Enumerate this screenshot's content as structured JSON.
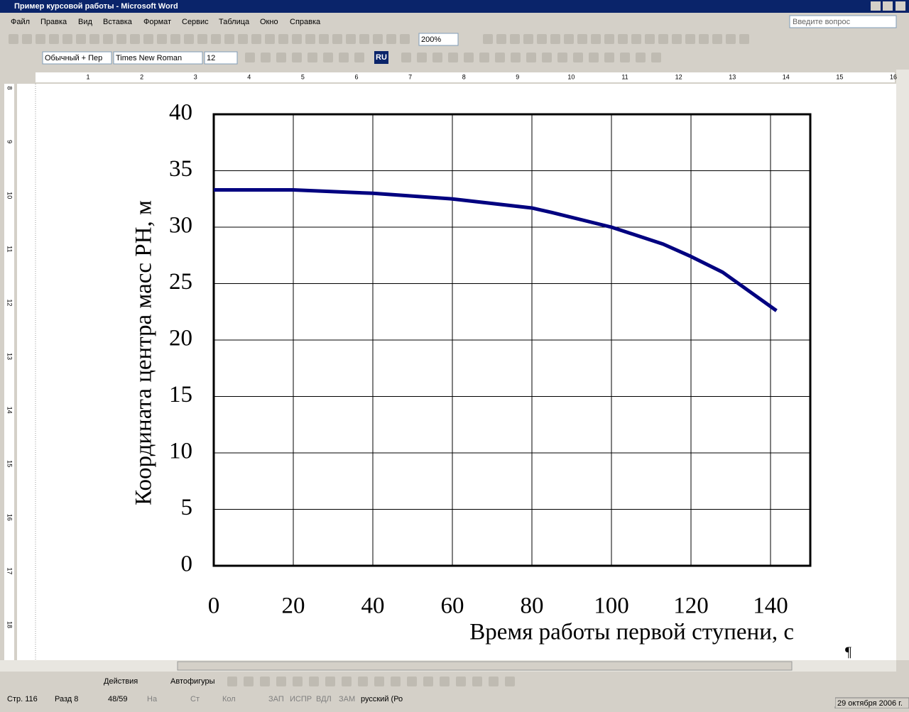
{
  "window": {
    "title": "Пример курсовой работы - Microsoft Word",
    "help_box": "Введите вопрос"
  },
  "menu": [
    "Файл",
    "Правка",
    "Вид",
    "Вставка",
    "Формат",
    "Сервис",
    "Таблица",
    "Окно",
    "Справка"
  ],
  "toolbar": {
    "zoom": "200%",
    "style": "Обычный + Пер",
    "font": "Times New Roman",
    "size": "12",
    "language": "RU"
  },
  "ruler": {
    "horizontal": [
      "1",
      "2",
      "3",
      "4",
      "5",
      "6",
      "7",
      "8",
      "9",
      "10",
      "11",
      "12",
      "13",
      "14",
      "15",
      "16"
    ],
    "vertical": [
      "8",
      "9",
      "10",
      "11",
      "12",
      "13",
      "14",
      "15",
      "16",
      "17",
      "18"
    ]
  },
  "document": {
    "pilcrow": "¶"
  },
  "drawing_toolbar": {
    "actions": "Действия",
    "autoshapes": "Автофигуры"
  },
  "status_bar": [
    "Стр. 116",
    "Разд 8",
    "48/59",
    "На",
    "Ст",
    "Кол",
    "ЗАП",
    "ИСПР",
    "ВДЛ",
    "ЗАМ",
    "русский (Ро"
  ],
  "taskbar_date": "29 октября 2006 г.",
  "chart_data": {
    "type": "line",
    "xlabel": "Время работы первой ступени, с",
    "ylabel": "Координата центра масс РН, м",
    "x": [
      0,
      20,
      40,
      60,
      80,
      85,
      100,
      113,
      120,
      128,
      141.5
    ],
    "values": [
      33.3,
      33.3,
      33.0,
      32.5,
      31.7,
      31.3,
      30.0,
      28.5,
      27.4,
      26.0,
      22.6
    ],
    "color": "#000080",
    "xlim": [
      0,
      150
    ],
    "ylim": [
      0,
      40
    ],
    "xticks": [
      0,
      20,
      40,
      60,
      80,
      100,
      120,
      140
    ],
    "yticks": [
      0,
      5,
      10,
      15,
      20,
      25,
      30,
      35,
      40
    ],
    "grid": true
  }
}
